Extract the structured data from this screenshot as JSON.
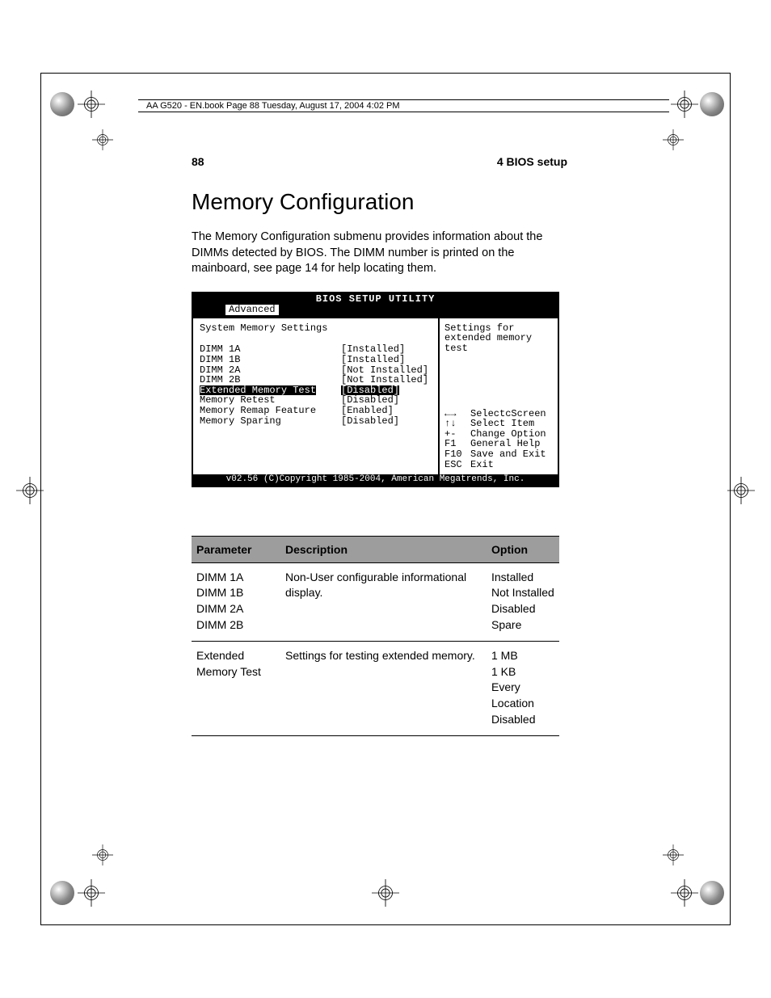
{
  "book_header": "AA G520 - EN.book  Page 88  Tuesday, August 17, 2004  4:02 PM",
  "page_number": "88",
  "chapter_label": "4 BIOS setup",
  "heading": "Memory Configuration",
  "intro": "The Memory Configuration submenu provides information about the DIMMs detected by BIOS. The DIMM number is printed on the mainboard, see page 14 for help locating them.",
  "bios": {
    "title": "BIOS SETUP UTILITY",
    "tab": "Advanced",
    "section_title": "System Memory Settings",
    "rows": [
      {
        "label": "DIMM 1A",
        "value": "[Installed]",
        "highlight": false
      },
      {
        "label": "DIMM 1B",
        "value": "[Installed]",
        "highlight": false
      },
      {
        "label": "DIMM 2A",
        "value": "[Not Installed]",
        "highlight": false
      },
      {
        "label": "DIMM 2B",
        "value": "[Not Installed]",
        "highlight": false
      },
      {
        "label": "Extended Memory Test",
        "value": "[Disabled]",
        "highlight": true
      },
      {
        "label": "Memory Retest",
        "value": "[Disabled]",
        "highlight": false
      },
      {
        "label": "Memory Remap Feature",
        "value": "[Enabled]",
        "highlight": false
      },
      {
        "label": "Memory Sparing",
        "value": "[Disabled]",
        "highlight": false
      }
    ],
    "help_text": "Settings for extended memory test",
    "keys": [
      {
        "key": "←→",
        "action": "SelectcScreen"
      },
      {
        "key": "↑↓",
        "action": "Select Item"
      },
      {
        "key": "+-",
        "action": "Change Option"
      },
      {
        "key": "F1",
        "action": "General Help"
      },
      {
        "key": "F10",
        "action": "Save and Exit"
      },
      {
        "key": "ESC",
        "action": "Exit"
      }
    ],
    "copyright": "v02.56 (C)Copyright 1985-2004, American Megatrends, Inc."
  },
  "table": {
    "headers": {
      "param": "Parameter",
      "desc": "Description",
      "opt": "Option"
    },
    "rows": [
      {
        "param": "DIMM 1A\nDIMM 1B\nDIMM 2A\nDIMM 2B",
        "desc": "Non-User configurable informational display.",
        "opt": "Installed\nNot Installed\nDisabled\nSpare"
      },
      {
        "param": "Extended Memory Test",
        "desc": "Settings for testing extended memory.",
        "opt": "1 MB\n1 KB\nEvery Location\nDisabled"
      }
    ]
  },
  "colors": {
    "page_bg": "#ffffff",
    "text": "#000000",
    "table_header_bg": "#9d9d9d",
    "bios_bg": "#ffffff",
    "bios_inverse": "#000000"
  }
}
